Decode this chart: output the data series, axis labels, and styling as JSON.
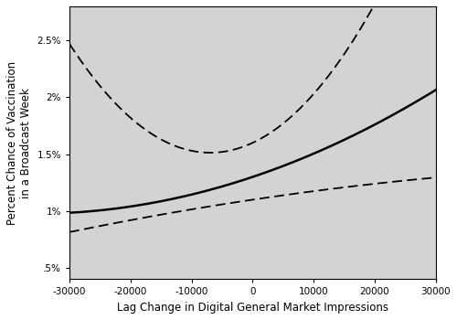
{
  "x_min": -30000,
  "x_max": 30000,
  "y_min": 0.004,
  "y_max": 0.028,
  "yticks": [
    0.005,
    0.01,
    0.015,
    0.02,
    0.025
  ],
  "ytick_labels": [
    ".5%",
    "1%",
    "1.5%",
    "2%",
    "2.5%"
  ],
  "xticks": [
    -30000,
    -20000,
    -10000,
    0,
    10000,
    20000,
    30000
  ],
  "xlabel": "Lag Change in Digital General Market Impressions",
  "ylabel": "Percent Chance of Vaccination\nin a Broadcast Week",
  "bg_color": "#d3d3d3",
  "line_color": "#000000",
  "n_points": 300,
  "mean_a": 0.013,
  "mean_b": 1.8e-07,
  "mean_c": 2.5e-12,
  "upper_a": 0.016,
  "upper_b": 2.5e-07,
  "upper_c": 1.8e-11,
  "lower_a": 0.011,
  "lower_b": 8e-08,
  "lower_c": -5e-13
}
